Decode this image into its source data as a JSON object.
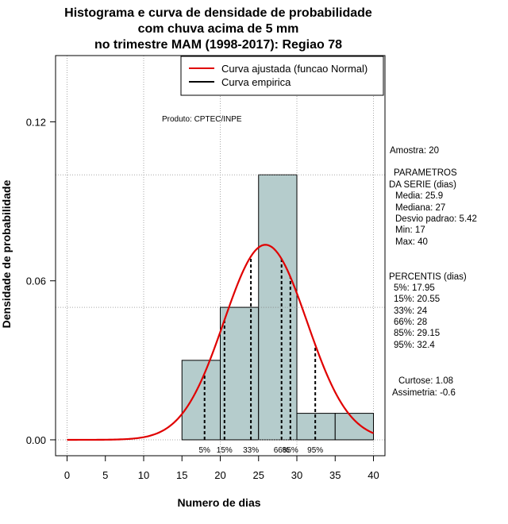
{
  "chart_data": {
    "type": "bar",
    "title_lines": [
      "Histograma e curva de densidade de probabilidade",
      "com chuva acima de 5 mm",
      "no trimestre MAM (1998-2017): Regiao 78"
    ],
    "xlabel": "Numero de dias",
    "ylabel": "Densidade de probabilidade",
    "xlim": [
      -1.5,
      41.5
    ],
    "ylim": [
      -0.006,
      0.145
    ],
    "xticks": [
      0,
      5,
      10,
      15,
      20,
      25,
      30,
      35,
      40
    ],
    "yticks": [
      0.0,
      0.06,
      0.12
    ],
    "ytick_labels": [
      "0.00",
      "0.06",
      "0.12"
    ],
    "gridlines_y": [
      0.0,
      0.05,
      0.1
    ],
    "gridlines_x": [
      0,
      10,
      20,
      30,
      40
    ],
    "bins": [
      {
        "from": 15,
        "to": 20,
        "density": 0.03
      },
      {
        "from": 20,
        "to": 25,
        "density": 0.05
      },
      {
        "from": 25,
        "to": 30,
        "density": 0.1
      },
      {
        "from": 30,
        "to": 35,
        "density": 0.01
      },
      {
        "from": 35,
        "to": 40,
        "density": 0.01
      }
    ],
    "bar_color": "#b5cccc",
    "normal_curve": {
      "mean": 25.9,
      "sd": 5.42,
      "x_range": [
        0,
        40
      ],
      "color": "#e00000"
    },
    "percentile_lines": [
      {
        "x": 17.95,
        "label": "5%"
      },
      {
        "x": 20.55,
        "label": "15%"
      },
      {
        "x": 24,
        "label": "33%"
      },
      {
        "x": 28,
        "label": "66%"
      },
      {
        "x": 29.15,
        "label": "85%"
      },
      {
        "x": 32.4,
        "label": "95%"
      }
    ],
    "legend": {
      "position": "top-right",
      "entries": [
        {
          "label": "Curva ajustada (funcao Normal)",
          "color": "#e00000"
        },
        {
          "label": "Curva empirica",
          "color": "#000000"
        }
      ]
    },
    "annotation": "Produto: CPTEC/INPE"
  },
  "stats_panel": {
    "sample": "Amostra: 20",
    "params_title_1": "PARAMETROS",
    "params_title_2": "DA SERIE (dias)",
    "media": "Media: 25.9",
    "mediana": "Mediana: 27",
    "desvio": "Desvio padrao: 5.42",
    "min": "Min: 17",
    "max": "Max: 40",
    "perc_title": "PERCENTIS (dias)",
    "p5": "5%: 17.95",
    "p15": "15%: 20.55",
    "p33": "33%: 24",
    "p66": "66%: 28",
    "p85": "85%: 29.15",
    "p95": "95%: 32.4",
    "curtose": "Curtose: 1.08",
    "assimetria": "Assimetria: -0.6"
  }
}
